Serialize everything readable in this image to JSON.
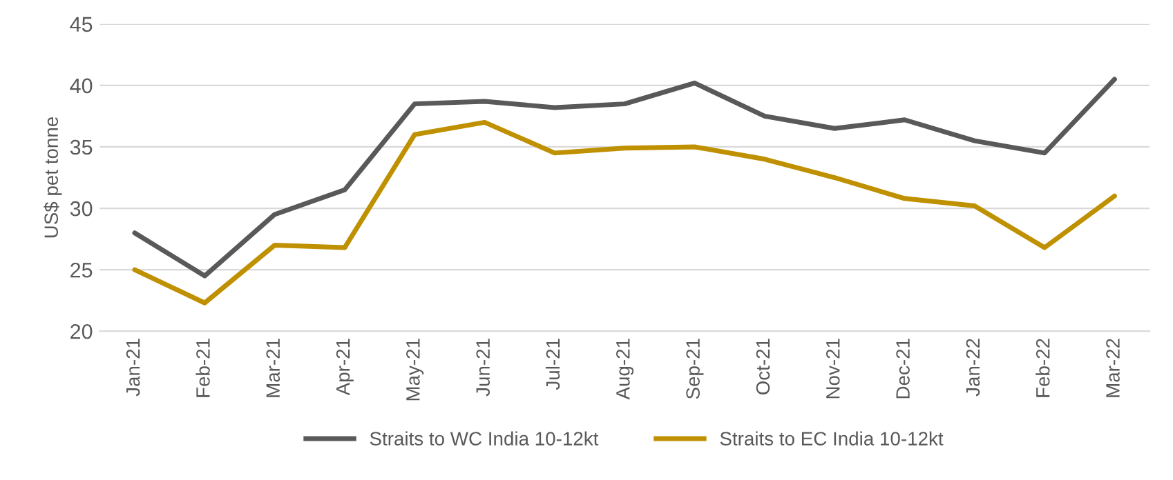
{
  "chart_data": {
    "type": "line",
    "ylabel": "US$ pet tonne",
    "categories": [
      "Jan-21",
      "Feb-21",
      "Mar-21",
      "Apr-21",
      "May-21",
      "Jun-21",
      "Jul-21",
      "Aug-21",
      "Sep-21",
      "Oct-21",
      "Nov-21",
      "Dec-21",
      "Jan-22",
      "Feb-22",
      "Mar-22"
    ],
    "series": [
      {
        "name": "Straits to WC India 10-12kt",
        "color": "#595959",
        "values": [
          28,
          24.5,
          29.5,
          31.5,
          38.5,
          38.7,
          38.2,
          38.5,
          40.2,
          37.5,
          36.5,
          37.2,
          35.5,
          34.5,
          40.5
        ]
      },
      {
        "name": "Straits to EC India 10-12kt",
        "color": "#bf9000",
        "values": [
          25,
          22.3,
          27,
          26.8,
          36,
          37,
          34.5,
          34.9,
          35,
          34,
          32.5,
          30.8,
          30.2,
          26.8,
          31
        ]
      }
    ],
    "ylim": [
      20,
      45
    ],
    "yticks": [
      20,
      25,
      30,
      35,
      40,
      45
    ],
    "grid": "y",
    "legend": "bottom",
    "marker": "none",
    "line_style": "solid"
  }
}
